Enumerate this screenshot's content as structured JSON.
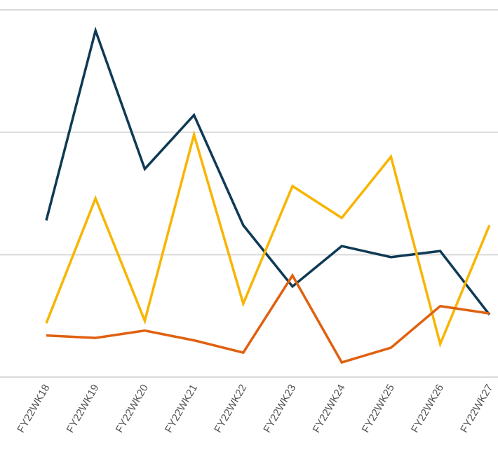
{
  "chart_data": {
    "type": "line",
    "title": "",
    "xlabel": "",
    "ylabel": "",
    "categories": [
      "FY22WK18",
      "FY22WK19",
      "FY22WK20",
      "FY22WK21",
      "FY22WK22",
      "FY22WK23",
      "FY22WK24",
      "FY22WK25",
      "FY22WK26",
      "FY22WK27"
    ],
    "ylim": [
      0,
      3
    ],
    "grid": true,
    "legend": "none",
    "series": [
      {
        "color": "#0e3a55",
        "values": [
          1.28,
          2.83,
          1.7,
          2.14,
          1.24,
          0.74,
          1.07,
          0.98,
          1.03,
          0.51
        ]
      },
      {
        "color": "#f7b500",
        "values": [
          0.44,
          1.46,
          0.46,
          1.98,
          0.6,
          1.56,
          1.3,
          1.8,
          0.27,
          1.24
        ]
      },
      {
        "color": "#e0600f",
        "values": [
          0.34,
          0.32,
          0.38,
          0.3,
          0.2,
          0.83,
          0.12,
          0.24,
          0.58,
          0.52
        ]
      }
    ]
  }
}
